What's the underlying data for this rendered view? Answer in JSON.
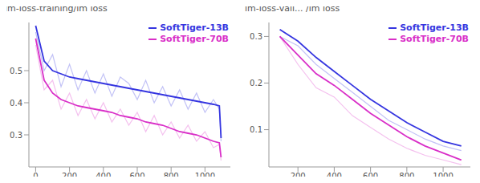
{
  "chart_data": [
    {
      "type": "line",
      "title": "lm-loss-training/lm loss",
      "x": [
        0,
        50,
        100,
        150,
        200,
        250,
        300,
        350,
        400,
        450,
        500,
        550,
        600,
        650,
        700,
        750,
        800,
        850,
        900,
        950,
        1000,
        1050,
        1085,
        1095
      ],
      "series": [
        {
          "name": "SoftTiger-13B",
          "color": "#3535e0",
          "values": [
            0.64,
            0.53,
            0.5,
            0.49,
            0.48,
            0.475,
            0.47,
            0.465,
            0.46,
            0.455,
            0.45,
            0.445,
            0.44,
            0.435,
            0.43,
            0.425,
            0.42,
            0.415,
            0.41,
            0.405,
            0.4,
            0.395,
            0.39,
            0.29
          ],
          "raw_values": [
            0.62,
            0.5,
            0.55,
            0.45,
            0.52,
            0.44,
            0.5,
            0.43,
            0.49,
            0.42,
            0.48,
            0.46,
            0.41,
            0.47,
            0.4,
            0.45,
            0.39,
            0.44,
            0.38,
            0.43,
            0.37,
            0.41,
            0.38,
            0.28
          ]
        },
        {
          "name": "SoftTiger-70B",
          "color": "#d92fc8",
          "values": [
            0.6,
            0.47,
            0.43,
            0.41,
            0.4,
            0.39,
            0.385,
            0.38,
            0.375,
            0.37,
            0.36,
            0.355,
            0.35,
            0.34,
            0.335,
            0.33,
            0.32,
            0.31,
            0.305,
            0.3,
            0.29,
            0.28,
            0.275,
            0.23
          ],
          "raw_values": [
            0.58,
            0.44,
            0.47,
            0.38,
            0.43,
            0.36,
            0.41,
            0.35,
            0.4,
            0.34,
            0.38,
            0.33,
            0.37,
            0.31,
            0.36,
            0.3,
            0.34,
            0.29,
            0.33,
            0.28,
            0.31,
            0.26,
            0.27,
            0.22
          ]
        }
      ],
      "xlim": [
        -40,
        1150
      ],
      "xticks": [
        0,
        200,
        400,
        600,
        800,
        1000
      ],
      "ylim": [
        0.2,
        0.65
      ],
      "yticks": [
        0.3,
        0.4,
        0.5
      ],
      "legend": "upper right",
      "grid": false
    },
    {
      "type": "line",
      "title": "lm-loss-vali... /lm loss",
      "x": [
        100,
        200,
        300,
        400,
        500,
        600,
        700,
        800,
        900,
        1000,
        1100
      ],
      "series": [
        {
          "name": "SoftTiger-13B",
          "color": "#3535e0",
          "values": [
            0.315,
            0.29,
            0.255,
            0.225,
            0.195,
            0.165,
            0.14,
            0.115,
            0.095,
            0.075,
            0.065
          ],
          "raw_values": [
            0.3,
            0.28,
            0.24,
            0.21,
            0.18,
            0.15,
            0.12,
            0.1,
            0.08,
            0.065,
            0.055
          ]
        },
        {
          "name": "SoftTiger-70B",
          "color": "#d92fc8",
          "values": [
            0.3,
            0.26,
            0.22,
            0.195,
            0.165,
            0.135,
            0.11,
            0.085,
            0.065,
            0.05,
            0.035
          ],
          "raw_values": [
            0.3,
            0.24,
            0.19,
            0.17,
            0.13,
            0.105,
            0.08,
            0.06,
            0.045,
            0.035,
            0.025
          ]
        }
      ],
      "xlim": [
        40,
        1150
      ],
      "xticks": [
        200,
        400,
        600,
        800,
        1000
      ],
      "ylim": [
        0.02,
        0.33
      ],
      "yticks": [
        0.1,
        0.2,
        0.3
      ],
      "legend": "upper right",
      "grid": false
    }
  ]
}
